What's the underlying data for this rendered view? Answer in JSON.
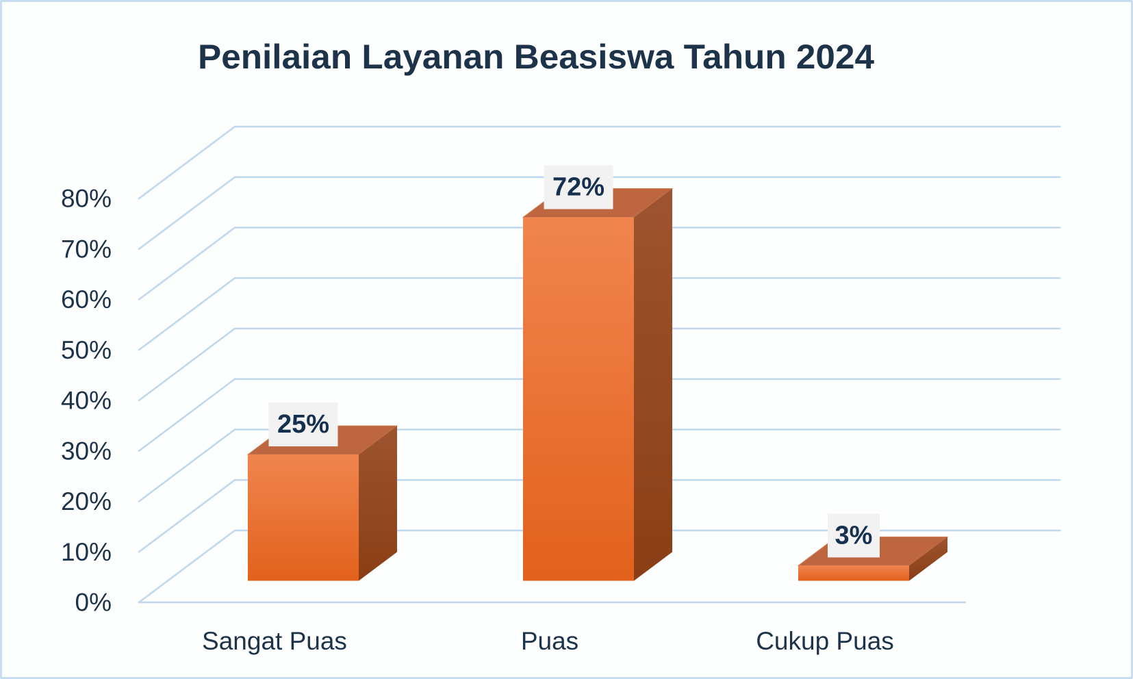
{
  "window": {
    "background": "#FDFEFE",
    "border_color": "#C9DDF1"
  },
  "chart_data": {
    "type": "bar",
    "style": "3d-bar",
    "title": "Penilaian Layanan Beasiswa Tahun 2024",
    "categories": [
      "Sangat Puas",
      "Puas",
      "Cukup Puas"
    ],
    "values": [
      25,
      72,
      3
    ],
    "data_labels": [
      "25%",
      "72%",
      "3%"
    ],
    "y_ticks": [
      "0%",
      "10%",
      "20%",
      "30%",
      "40%",
      "50%",
      "60%",
      "70%",
      "80%"
    ],
    "ylim": [
      0,
      80
    ],
    "y_step": 10,
    "xlabel": "",
    "ylabel": "",
    "grid": true,
    "legend": "none",
    "colors": {
      "title_text": "#1D3349",
      "axis_text": "#1D3349",
      "gridline": "#BFD8EE",
      "bar_front_top": "#F0854F",
      "bar_front_bottom": "#E2611C",
      "bar_top_face": "#BE6640",
      "bar_top_edge": "#CF8057",
      "bar_side_top": "#9C5530",
      "bar_side_bottom": "#8A3E15",
      "data_label_box": "#F2F2F2",
      "data_label_text": "#16314F"
    }
  }
}
